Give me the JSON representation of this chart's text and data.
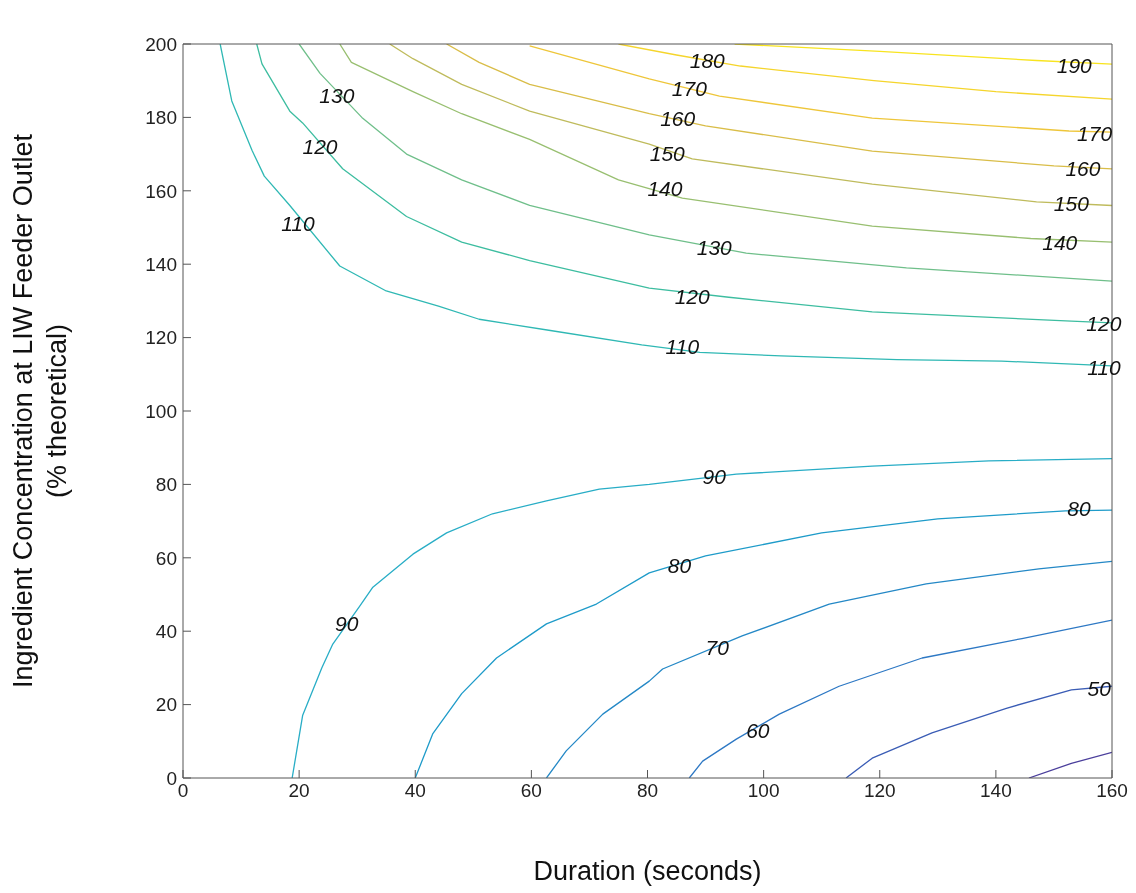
{
  "chart_data": {
    "type": "line",
    "xlabel": "Duration (seconds)",
    "ylabel": "Ingredient Concentration  at LIW Feeder Outlet\n(% theoretical)",
    "xlim": [
      0,
      160
    ],
    "xticks": [
      0,
      20,
      40,
      60,
      80,
      100,
      120,
      140,
      160
    ],
    "ylim": [
      0,
      200
    ],
    "yticks": [
      0,
      20,
      40,
      60,
      80,
      100,
      120,
      140,
      160,
      180,
      200
    ],
    "grid": false,
    "legend": false,
    "marker": "none",
    "line_style": "solid",
    "series": [
      {
        "color": "#4b3f9c",
        "x": [
          145.7,
          153,
          160
        ],
        "values": [
          0,
          4,
          7
        ]
      },
      {
        "color": "#3a5cb5",
        "x": [
          114.2,
          118.7,
          129,
          141.8,
          153,
          160
        ],
        "values": [
          0,
          5.4,
          12.3,
          19,
          24,
          25
        ]
      },
      {
        "color": "#2d78c4",
        "x": [
          87.2,
          89.5,
          95.3,
          102.7,
          113,
          127.3,
          144.5,
          160
        ],
        "values": [
          0,
          4.6,
          10.6,
          17.4,
          25,
          32.7,
          38,
          43
        ]
      },
      {
        "color": "#2488c6",
        "x": [
          62.6,
          66,
          72.3,
          80.3,
          82.6,
          96.3,
          111.3,
          128,
          147.4,
          160
        ],
        "values": [
          0,
          7.4,
          17.4,
          26.4,
          29.7,
          38.7,
          47.4,
          52.9,
          57,
          59
        ]
      },
      {
        "color": "#1e9bc9",
        "x": [
          40,
          43,
          48,
          54,
          62.6,
          71.2,
          80.3,
          90,
          110,
          130,
          152,
          160
        ],
        "values": [
          0,
          12,
          23,
          32.7,
          42,
          47.4,
          55.9,
          60.5,
          66.8,
          70.6,
          72.8,
          73
        ]
      },
      {
        "color": "#28adc6",
        "x": [
          18.8,
          20.6,
          23.9,
          25.8,
          30.5,
          32.7,
          39.6,
          45.4,
          53.3,
          62.6,
          71.7,
          80.3,
          95.3,
          118.7,
          138.8,
          160
        ],
        "values": [
          0,
          17,
          30,
          36.5,
          47,
          52,
          61,
          66.8,
          72,
          75.5,
          78.7,
          80,
          82.8,
          85,
          86.4,
          87
        ]
      },
      {
        "color": "#2fb8b4",
        "x": [
          6.4,
          8.4,
          11.9,
          14,
          18.4,
          27,
          35,
          44,
          51,
          63,
          79,
          89,
          103,
          123,
          141,
          160
        ],
        "values": [
          200,
          184.5,
          171,
          164,
          156,
          139.5,
          132.7,
          128.6,
          125,
          122,
          118,
          116,
          115,
          114,
          113.6,
          112.3
        ]
      },
      {
        "color": "#3dbda0",
        "x": [
          12.7,
          13.6,
          18.4,
          20.6,
          27.5,
          38.5,
          48,
          59.7,
          80.3,
          94,
          118.7,
          153,
          160
        ],
        "values": [
          200,
          194.6,
          181.7,
          178.5,
          166,
          153,
          146,
          141,
          133.5,
          131,
          127,
          124.5,
          124
        ]
      },
      {
        "color": "#6fbf8a",
        "x": [
          20,
          23.6,
          30.8,
          38.5,
          48,
          59.7,
          80.3,
          97,
          124.6,
          160
        ],
        "values": [
          200,
          192,
          180,
          170,
          163,
          156,
          148,
          143,
          139,
          135.4
        ]
      },
      {
        "color": "#98bf70",
        "x": [
          27,
          29,
          39.6,
          48,
          59.7,
          75,
          86,
          118.7,
          146,
          160
        ],
        "values": [
          200,
          195,
          187,
          181,
          174,
          163,
          158,
          150.4,
          147,
          146
        ]
      },
      {
        "color": "#bfbb5c",
        "x": [
          35.6,
          39.6,
          48,
          59.7,
          80.3,
          87.7,
          118.7,
          147,
          160
        ],
        "values": [
          200,
          196,
          189,
          181.7,
          172.7,
          168.7,
          161.8,
          157,
          156
        ]
      },
      {
        "color": "#d9bd48",
        "x": [
          45.4,
          51,
          59.7,
          80.3,
          90,
          118.7,
          150,
          160
        ],
        "values": [
          200,
          195,
          189,
          181,
          177.7,
          170.8,
          166.8,
          166
        ]
      },
      {
        "color": "#eec63a",
        "x": [
          59.7,
          80.3,
          92.4,
          118.7,
          152.6,
          160
        ],
        "values": [
          199.5,
          190.5,
          185.8,
          179.8,
          176.3,
          176
        ]
      },
      {
        "color": "#f5d52c",
        "x": [
          75,
          85,
          96,
          119,
          140,
          160
        ],
        "values": [
          200,
          197,
          194,
          190,
          187,
          185
        ]
      },
      {
        "color": "#f8e41f",
        "x": [
          95,
          120,
          147,
          160
        ],
        "values": [
          200,
          198,
          195.5,
          194.5
        ]
      }
    ],
    "annotations": [
      {
        "text": "130",
        "x": 26.5,
        "y": 185.8
      },
      {
        "text": "120",
        "x": 23.6,
        "y": 172
      },
      {
        "text": "110",
        "x": 19.8,
        "y": 151
      },
      {
        "text": "180",
        "x": 90.3,
        "y": 195.4
      },
      {
        "text": "170",
        "x": 87.2,
        "y": 187.7
      },
      {
        "text": "160",
        "x": 85.2,
        "y": 179.6
      },
      {
        "text": "150",
        "x": 83.4,
        "y": 170
      },
      {
        "text": "140",
        "x": 83,
        "y": 160.5
      },
      {
        "text": "130",
        "x": 91.5,
        "y": 144.4
      },
      {
        "text": "120",
        "x": 87.7,
        "y": 131
      },
      {
        "text": "110",
        "x": 86,
        "y": 117.4
      },
      {
        "text": "190",
        "x": 153.5,
        "y": 194
      },
      {
        "text": "170",
        "x": 157,
        "y": 175.5
      },
      {
        "text": "160",
        "x": 155,
        "y": 166
      },
      {
        "text": "150",
        "x": 153,
        "y": 156.4
      },
      {
        "text": "140",
        "x": 151,
        "y": 145.8
      },
      {
        "text": "120",
        "x": 158.6,
        "y": 123.7
      },
      {
        "text": "110",
        "x": 158.6,
        "y": 111.7
      },
      {
        "text": "90",
        "x": 28.2,
        "y": 42
      },
      {
        "text": "90",
        "x": 91.5,
        "y": 82
      },
      {
        "text": "80",
        "x": 154.3,
        "y": 73.3
      },
      {
        "text": "80",
        "x": 85.5,
        "y": 57.8
      },
      {
        "text": "70",
        "x": 92,
        "y": 35.4
      },
      {
        "text": "60",
        "x": 99,
        "y": 12.8
      },
      {
        "text": "50",
        "x": 157.8,
        "y": 24.3
      }
    ]
  }
}
